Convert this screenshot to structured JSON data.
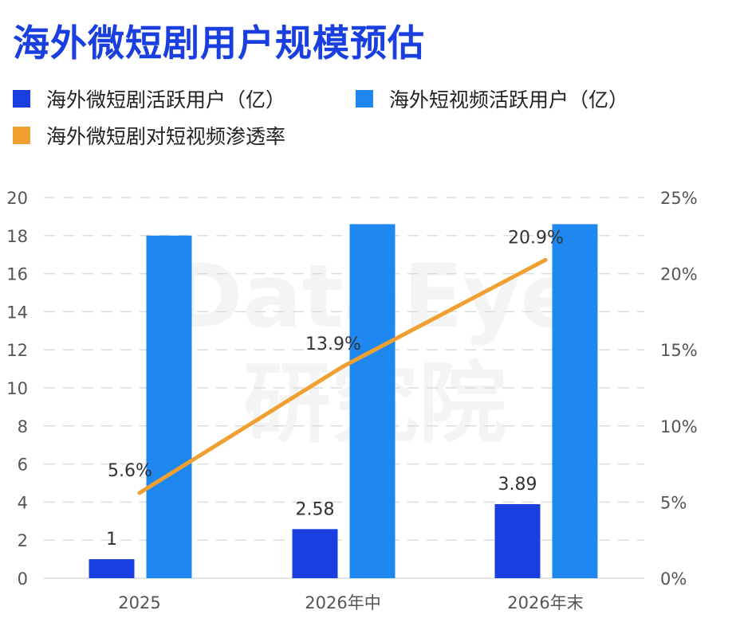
{
  "title": "海外微短剧用户规模预估",
  "legend": [
    {
      "label": "海外微短剧活跃用户（亿）",
      "color": "#1a3fe0"
    },
    {
      "label": "海外短视频活跃用户（亿）",
      "color": "#1e88f0"
    },
    {
      "label": "海外微短剧对短视频渗透率",
      "color": "#f0a030"
    }
  ],
  "watermark": {
    "line1": "DataEye",
    "line2": "研究院"
  },
  "chart_data": {
    "type": "bar",
    "categories": [
      "2025",
      "2026年中",
      "2026年末"
    ],
    "series": [
      {
        "name": "海外微短剧活跃用户（亿）",
        "type": "bar",
        "axis": "left",
        "values": [
          1,
          2.58,
          3.89
        ],
        "labels": [
          "1",
          "2.58",
          "3.89"
        ],
        "color": "#1a3fe0"
      },
      {
        "name": "海外短视频活跃用户（亿）",
        "type": "bar",
        "axis": "left",
        "values": [
          18,
          18.6,
          18.6
        ],
        "color": "#1e88f0"
      },
      {
        "name": "海外微短剧对短视频渗透率",
        "type": "line",
        "axis": "right",
        "values": [
          5.6,
          13.9,
          20.9
        ],
        "labels": [
          "5.6%",
          "13.9%",
          "20.9%"
        ],
        "color": "#f0a030"
      }
    ],
    "y_left": {
      "min": 0,
      "max": 20,
      "ticks": [
        "0",
        "2",
        "4",
        "6",
        "8",
        "10",
        "12",
        "14",
        "16",
        "18",
        "20"
      ]
    },
    "y_right": {
      "min": 0,
      "max": 25,
      "ticks": [
        "0%",
        "5%",
        "10%",
        "15%",
        "20%",
        "25%"
      ]
    },
    "grid": true,
    "legend_position": "top-left"
  }
}
